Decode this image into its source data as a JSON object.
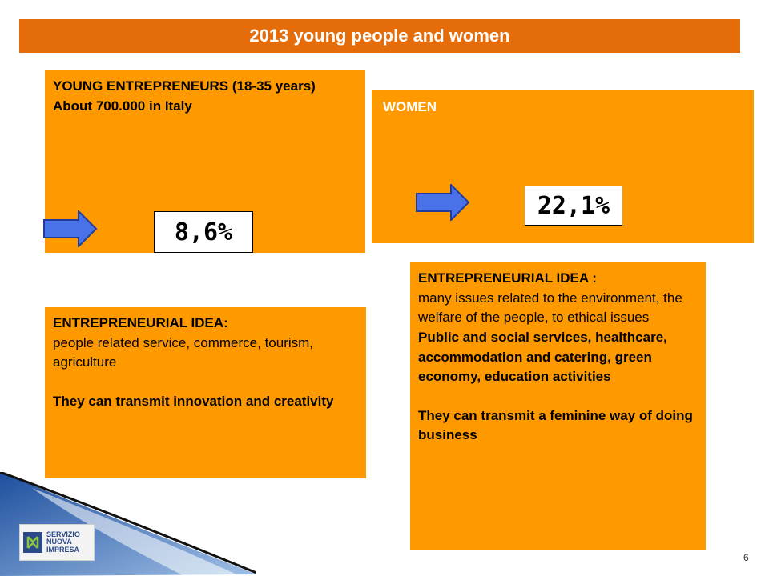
{
  "title": "2013 young people and women",
  "young": {
    "heading": "YOUNG ENTREPRENEURS (18-35 years)",
    "subheading": "About 700.000  in Italy",
    "percent": "8,6%"
  },
  "women": {
    "heading": "WOMEN",
    "percent": "22,1%"
  },
  "idea_young": {
    "label": "ENTREPRENEURIAL IDEA:",
    "text": "people related service, commerce, tourism, agriculture",
    "note": "They can transmit innovation and creativity"
  },
  "idea_women": {
    "label": "ENTREPRENEURIAL IDEA :",
    "text": "many issues related to the environment, the welfare of the people, to ethical issues",
    "sectors": "Public and social services, healthcare, accommodation and catering, green economy, education activities",
    "note": "They can transmit a feminine way of doing business"
  },
  "logo": {
    "line1": "SERVIZIO",
    "line2": "NUOVA",
    "line3": "IMPRESA"
  },
  "page_number": "6",
  "colors": {
    "title_bar": "#e46c0a",
    "box": "#ff9900",
    "arrow": "#4a72e8"
  }
}
